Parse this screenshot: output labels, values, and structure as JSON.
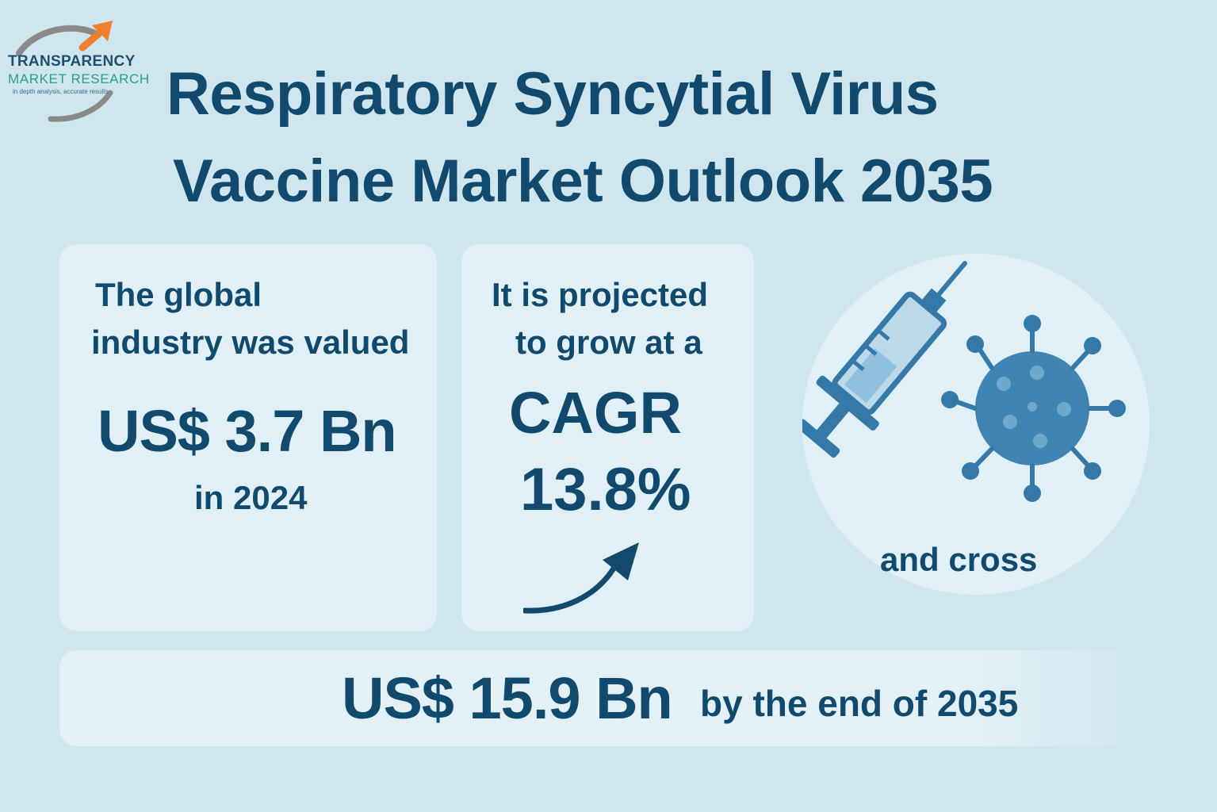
{
  "logo": {
    "name": "TRANSPARENCY",
    "subname": "MARKET RESEARCH",
    "tagline": "in depth analysis, accurate results"
  },
  "title": {
    "line1": "Respiratory Syncytial Virus",
    "line2": "Vaccine Market Outlook 2035"
  },
  "card_value": {
    "line1": "The global",
    "line2": "industry was valued",
    "amount": "US$ 3.7 Bn",
    "year": "in 2024"
  },
  "card_growth": {
    "line1": "It is projected",
    "line2": "to grow at a",
    "label": "CAGR",
    "rate": "13.8%"
  },
  "illustration": {
    "icons": [
      "syringe-icon",
      "virus-icon",
      "trend-arrow-icon"
    ],
    "caption": "and cross"
  },
  "forecast": {
    "amount": "US$ 15.9 Bn",
    "suffix": "by the end of 2035"
  },
  "colors": {
    "background": "#cfe6ef",
    "card": "#e1f0f6",
    "text": "#124a6e",
    "icon": "#3579a8",
    "logo_arrow": "#f07f30",
    "logo_swoosh": "#8a8a8a"
  }
}
